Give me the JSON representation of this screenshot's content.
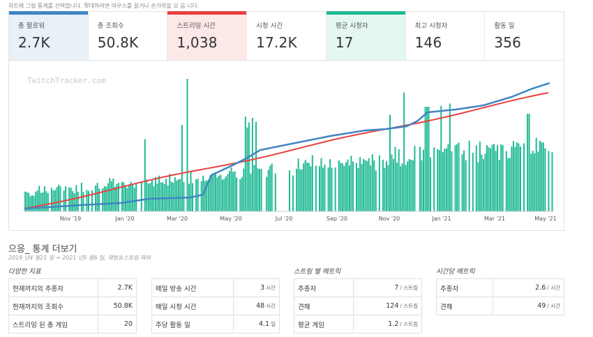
{
  "hint": "차트에 그릴 통계를 선택합니다. 확대하려면 마우스를 끌거나 손가락을 모 읍 니다.",
  "cards": [
    {
      "label": "총 팔로워",
      "value": "2.7K",
      "bar": "#3f85c2",
      "bg": "#e8f0f8"
    },
    {
      "label": "총 조회수",
      "value": "50.8K",
      "bar": "",
      "bg": "#ffffff"
    },
    {
      "label": "스트리밍 시간",
      "value": "1,038",
      "bar": "#e84040",
      "bg": "#fde8e8"
    },
    {
      "label": "시청 시간",
      "value": "17.2K",
      "bar": "",
      "bg": "#ffffff"
    },
    {
      "label": "평균 시청자",
      "value": "17",
      "bar": "#1fba94",
      "bg": "#e4f7f2"
    },
    {
      "label": "최고 시청자",
      "value": "146",
      "bar": "",
      "bg": "#ffffff"
    },
    {
      "label": "활동 일",
      "value": "356",
      "bar": "",
      "bg": "#ffffff"
    }
  ],
  "chart": {
    "watermark": "TwitchTracker.com",
    "x_labels": [
      "Nov '19",
      "Jan '20",
      "Mar '20",
      "May '20",
      "Jul '20",
      "Sep '20",
      "Nov '20",
      "Jan '21",
      "Mar '21",
      "May '21"
    ],
    "colors": {
      "bars": "#1fba94",
      "followers": "#3f85c2",
      "hours": "#e84040"
    }
  },
  "more": {
    "title": "으응_ 통계 더보기",
    "subtitle": "2019 년4 월21 일 ➞ 2021 년5 월6 일, 재방송스트림 제외"
  },
  "sections": {
    "various": "다양한 지표",
    "per_stream": "스트림 별 메트릭",
    "per_hour": "시간당 메트릭"
  },
  "table1": [
    {
      "label": "현재까지의 추종자",
      "value": "2.7K"
    },
    {
      "label": "현재까지의 조회수",
      "value": "50.8K"
    },
    {
      "label": "스트리밍 된 총 게임",
      "value": "20"
    }
  ],
  "table2": [
    {
      "label": "매일 방송 시간",
      "value": "3",
      "unit": "시간"
    },
    {
      "label": "매일 시청 시간",
      "value": "48",
      "unit": "시간"
    },
    {
      "label": "주당 활동 일",
      "value": "4.1",
      "unit": "일"
    }
  ],
  "table3": [
    {
      "label": "추종자",
      "value": "7",
      "unit": "/ 스트림"
    },
    {
      "label": "견해",
      "value": "124",
      "unit": "/ 스트림"
    },
    {
      "label": "평균 게임",
      "value": "1.2",
      "unit": "/ 스트림"
    }
  ],
  "table4": [
    {
      "label": "추종자",
      "value": "2.6",
      "unit": "/ 시간"
    },
    {
      "label": "견해",
      "value": "49",
      "unit": "/ 시간"
    }
  ]
}
